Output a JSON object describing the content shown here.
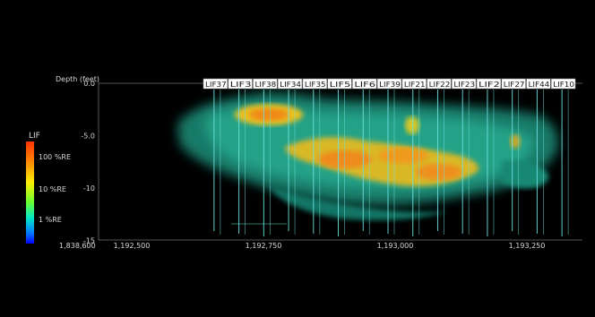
{
  "legend": {
    "title": "LIF",
    "ticks": [
      "100 %RE",
      "10 %RE",
      "1 %RE"
    ],
    "colors": [
      "#ff3300",
      "#ff8800",
      "#ffee00",
      "#66ff33",
      "#00e6c8",
      "#0077ff",
      "#0000ff"
    ]
  },
  "axes": {
    "depth_label": "Depth (feet)",
    "depth_values": [
      "0.0",
      "-5.0",
      "-10",
      "-15"
    ],
    "depth_numbers": [
      0,
      -5,
      -10,
      -15
    ],
    "easting_values": [
      "1,192,500",
      "1,192,750",
      "1,193,000",
      "1,193,250"
    ],
    "easting_numbers": [
      1192500,
      1192750,
      1193000,
      1193250
    ],
    "northing_corner": "1,838,600"
  },
  "wells": [
    "LIF37",
    "LIF3",
    "LIF38",
    "LIF34",
    "LIF35",
    "LIF5",
    "LIF6",
    "LIF39",
    "LIF21",
    "LIF22",
    "LIF23",
    "LIF2",
    "LIF27",
    "LIF44",
    "LIF10"
  ],
  "colors": {
    "plume": "#1fb597",
    "hotspot": "#f0a020",
    "well": "#6fe0e0",
    "label_bg": "#ffffff"
  }
}
